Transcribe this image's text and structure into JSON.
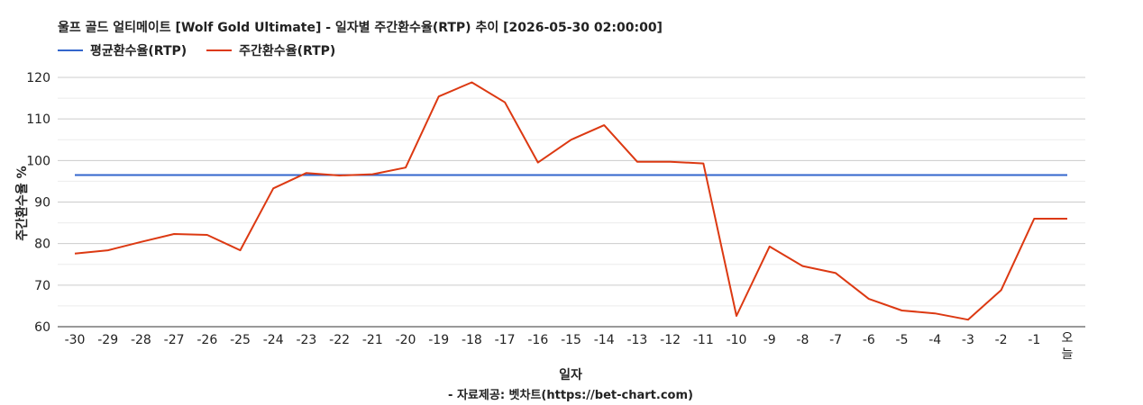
{
  "chart_data": {
    "type": "line",
    "title": "울프 골드 얼티메이트 [Wolf Gold Ultimate] - 일자별 주간환수율(RTP) 추이 [2026-05-30 02:00:00]",
    "xlabel": "일자",
    "ylabel": "주간환수율 %",
    "source": "- 자료제공: 벳차트(https://bet-chart.com)",
    "ylim": [
      60,
      120
    ],
    "yticks": [
      "60",
      "70",
      "80",
      "90",
      "100",
      "110",
      "120"
    ],
    "grid": true,
    "legend_position": "top-left",
    "categories": [
      "-30",
      "-29",
      "-28",
      "-27",
      "-26",
      "-25",
      "-24",
      "-23",
      "-22",
      "-21",
      "-20",
      "-19",
      "-18",
      "-17",
      "-16",
      "-15",
      "-14",
      "-13",
      "-12",
      "-11",
      "-10",
      "-9",
      "-8",
      "-7",
      "-6",
      "-5",
      "-4",
      "-3",
      "-2",
      "-1",
      "오늘"
    ],
    "series": [
      {
        "name": "평균환수율(RTP)",
        "color": "#3366cc",
        "values": [
          96.5,
          96.5,
          96.5,
          96.5,
          96.5,
          96.5,
          96.5,
          96.5,
          96.5,
          96.5,
          96.5,
          96.5,
          96.5,
          96.5,
          96.5,
          96.5,
          96.5,
          96.5,
          96.5,
          96.5,
          96.5,
          96.5,
          96.5,
          96.5,
          96.5,
          96.5,
          96.5,
          96.5,
          96.5,
          96.5,
          96.5
        ]
      },
      {
        "name": "주간환수율(RTP)",
        "color": "#dc3912",
        "values": [
          77.6,
          78.4,
          80.4,
          82.3,
          82.1,
          78.4,
          93.3,
          97.0,
          96.4,
          96.7,
          98.3,
          115.4,
          118.8,
          114.0,
          99.5,
          105.0,
          108.5,
          99.7,
          99.7,
          99.3,
          62.6,
          79.3,
          74.6,
          72.9,
          66.7,
          63.9,
          63.2,
          61.7,
          68.8,
          86.0,
          86.0
        ]
      }
    ]
  }
}
